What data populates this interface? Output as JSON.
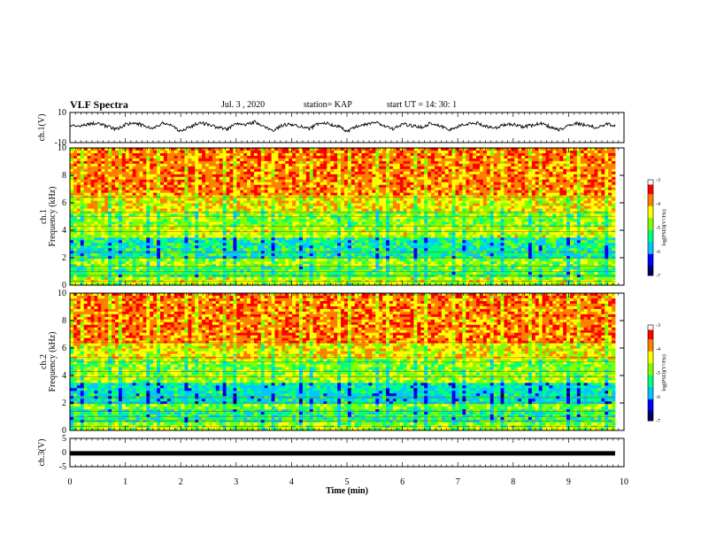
{
  "header": {
    "title": "VLF Spectra",
    "date": "Jul. 3 , 2020",
    "station": "station= KAP",
    "start": "start UT = 14: 30: 1"
  },
  "chart_data": [
    {
      "type": "line",
      "panel": "ch1-waveform",
      "ylabel": "ch.1(V)",
      "ylim": [
        -10,
        10
      ],
      "yticks": [
        "10",
        "-10"
      ],
      "xlim": [
        0,
        10
      ],
      "description_of_trace": "noisy waveform around roughly +1 V with excursions between about -3 and +5 V",
      "series": [
        {
          "values": [
            1.2,
            0.5,
            2.5,
            3.0,
            0.8,
            -1.5,
            2.0,
            3.5,
            1.0,
            -0.5,
            2.8,
            1.5,
            -2.5,
            0.5,
            3.2,
            2.0,
            0.0,
            -1.0,
            2.5,
            1.8,
            3.8,
            0.5,
            -2.0,
            1.5,
            2.2,
            0.8,
            -0.8,
            3.0,
            2.5,
            1.0,
            -2.8,
            0.5,
            2.0,
            3.5,
            1.2,
            -1.2,
            2.6,
            1.0,
            0.2,
            2.8,
            1.5,
            -1.8,
            0.8,
            2.4,
            3.0,
            1.0,
            -0.5,
            1.8,
            2.2,
            0.6,
            1.4,
            2.9,
            0.3,
            -1.4,
            1.9,
            2.7,
            1.1,
            0.0,
            2.3,
            1.6
          ]
        }
      ]
    },
    {
      "type": "heatmap",
      "panel": "ch1-spectrogram",
      "ylabel": "ch.1\nFrequency (kHz)",
      "ylim": [
        0,
        10
      ],
      "yticks": [
        "0",
        "2",
        "4",
        "6",
        "8",
        "10"
      ],
      "xlim": [
        0,
        10
      ],
      "colorbar": {
        "label": "log(PSD)(V²/Hz)",
        "range": [
          -7,
          -3
        ],
        "ticks": [
          "-3",
          "-4",
          "-5",
          "-6",
          "-7"
        ]
      },
      "bands_khz": [
        {
          "from": 0,
          "to": 0.6,
          "level": -4.5
        },
        {
          "from": 0.6,
          "to": 1.3,
          "level": -5.0
        },
        {
          "from": 1.3,
          "to": 2.0,
          "level": -4.6
        },
        {
          "from": 2.0,
          "to": 3.4,
          "level": -5.3
        },
        {
          "from": 3.4,
          "to": 4.3,
          "level": -4.5
        },
        {
          "from": 4.3,
          "to": 5.3,
          "level": -4.7
        },
        {
          "from": 5.3,
          "to": 6.5,
          "level": -4.2
        },
        {
          "from": 6.5,
          "to": 10,
          "level": -3.7
        }
      ]
    },
    {
      "type": "heatmap",
      "panel": "ch2-spectrogram",
      "ylabel": "ch.2\nFrequency (kHz)",
      "ylim": [
        0,
        10
      ],
      "yticks": [
        "0",
        "2",
        "4",
        "6",
        "8",
        "10"
      ],
      "xlim": [
        0,
        10
      ],
      "colorbar": {
        "label": "log(PSD)(V²/Hz)",
        "range": [
          -7,
          -3
        ],
        "ticks": [
          "-3",
          "-4",
          "-5",
          "-6",
          "-7"
        ]
      },
      "bands_khz": [
        {
          "from": 0,
          "to": 0.5,
          "level": -4.6
        },
        {
          "from": 0.5,
          "to": 1.6,
          "level": -5.1
        },
        {
          "from": 1.6,
          "to": 2.0,
          "level": -4.7
        },
        {
          "from": 2.0,
          "to": 3.4,
          "level": -5.5
        },
        {
          "from": 3.4,
          "to": 4.2,
          "level": -4.6
        },
        {
          "from": 4.2,
          "to": 5.2,
          "level": -4.7
        },
        {
          "from": 5.2,
          "to": 6.3,
          "level": -4.2
        },
        {
          "from": 6.3,
          "to": 10,
          "level": -3.7
        }
      ]
    },
    {
      "type": "line",
      "panel": "ch3-waveform",
      "ylabel": "ch.3(V)",
      "ylim": [
        -5,
        5
      ],
      "yticks": [
        "5",
        "0",
        "-5"
      ],
      "xlim": [
        0,
        10
      ],
      "series": [
        {
          "values": [
            0,
            0
          ]
        }
      ]
    }
  ],
  "xaxis": {
    "label": "Time (min)",
    "ticks": [
      "0",
      "1",
      "2",
      "3",
      "4",
      "5",
      "6",
      "7",
      "8",
      "9",
      "10"
    ],
    "range": [
      0,
      10
    ]
  },
  "colors": {
    "cmap": [
      "#000060",
      "#0000ff",
      "#00c8ff",
      "#00ff80",
      "#80ff00",
      "#ffff00",
      "#ff8000",
      "#ff0000",
      "#ffffff"
    ]
  }
}
